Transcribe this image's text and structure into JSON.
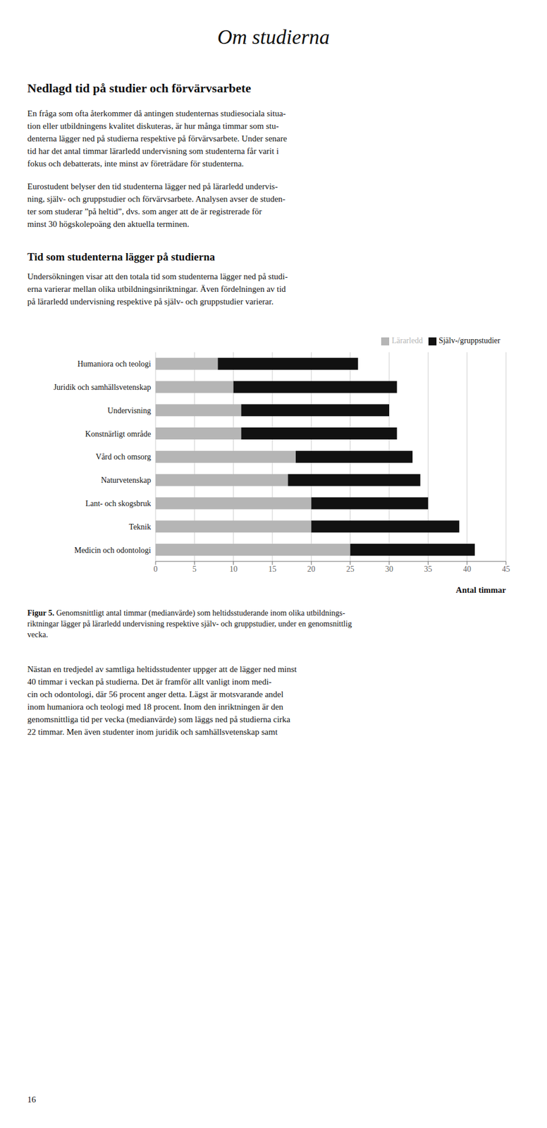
{
  "chart_data": {
    "type": "bar",
    "orientation": "horizontal",
    "stacked": true,
    "grid": true,
    "legend": "upper right",
    "categories": [
      "Humaniora och teologi",
      "Juridik och samhällsvetenskap",
      "Undervisning",
      "Konstnärligt område",
      "Vård och omsorg",
      "Naturvetenskap",
      "Lant- och skogsbruk",
      "Teknik",
      "Medicin och odontologi"
    ],
    "series": [
      {
        "name": "Lärarledd",
        "color": "#b5b5b5",
        "values": [
          8,
          10,
          11,
          11,
          18,
          17,
          20,
          20,
          25
        ]
      },
      {
        "name": "Själv-/gruppstudier",
        "color": "#111111",
        "values": [
          18,
          21,
          19,
          20,
          15,
          17,
          15,
          19,
          16
        ]
      }
    ],
    "xlabel": "Antal timmar",
    "xlim": [
      0,
      45
    ],
    "xticks": [
      0,
      5,
      10,
      15,
      20,
      25,
      30,
      35,
      40,
      45
    ],
    "annotations": [
      [
        "Om studierna"
      ],
      [
        "Nedlagd tid på studier och förvärvsarbete"
      ],
      [
        "En fråga som ofta återkommer då antingen studenternas studiesociala situa-",
        "tion eller utbildningens kvalitet diskuteras, är hur många timmar som stu-",
        "denterna lägger ned på studierna respektive på förvärvsarbete. Under senare",
        "tid har det antal timmar lärarledd undervisning som studenterna får varit i",
        "fokus och debatterats, inte minst av företrädare för studenterna."
      ],
      [
        "Eurostudent belyser den tid studenterna lägger ned på lärarledd undervis-",
        "ning, själv- och gruppstudier och förvärvsarbete. Analysen avser de studen-",
        "ter som studerar ”på heltid”, dvs. som anger att de är registrerade för",
        "minst 30 högskolepoäng den aktuella terminen."
      ],
      [
        "Tid som studenterna lägger på studierna"
      ],
      [
        "Undersökningen visar att den totala tid som studenterna lägger ned på studi-",
        "erna varierar mellan olika utbildningsinriktningar. Även fördelningen av tid",
        "på lärarledd undervisning respektive på själv- och gruppstudier varierar."
      ],
      [
        "Figur 5.",
        " Genomsnittligt antal timmar (medianvärde) som heltidsstuderande inom olika utbildnings-",
        "riktningar lägger på lärarledd undervisning respektive själv- och gruppstudier, under en genomsnittlig",
        "vecka."
      ],
      [
        "Nästan en tredjedel av samtliga heltidsstudenter uppger att de lägger ned minst",
        "40 timmar i veckan på studierna. Det är framför allt vanligt inom medi-",
        "cin och odontologi, där 56 procent anger detta. Lägst är motsvarande andel",
        "inom humaniora och teologi med 18 procent. Inom den inriktningen är den",
        "genomsnittliga tid per vecka (medianvärde) som läggs ned på studierna cirka",
        "22 timmar. Men även studenter inom juridik och samhällsvetenskap samt"
      ],
      [
        "16"
      ]
    ]
  }
}
